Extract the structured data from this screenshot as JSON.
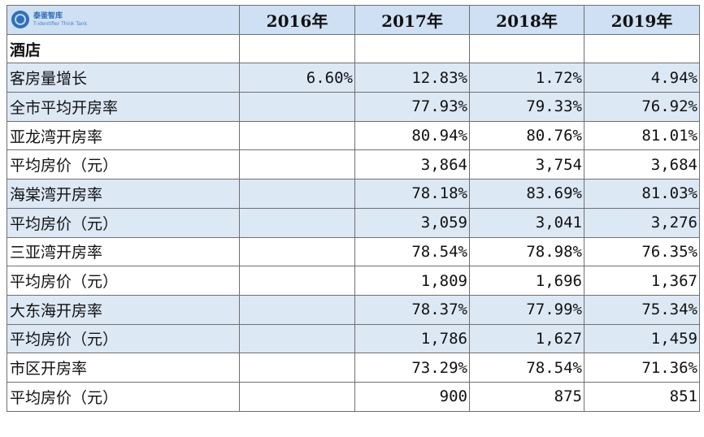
{
  "logo": {
    "cn": "泰鉴智库",
    "en": "T-identifier Think Tank"
  },
  "columns": [
    "2016年",
    "2017年",
    "2018年",
    "2019年"
  ],
  "section": "酒店",
  "rows": [
    {
      "label": "客房量增长",
      "values": [
        "6.60%",
        "12.83%",
        "1.72%",
        "4.94%"
      ],
      "shade": true
    },
    {
      "label": "全市平均开房率",
      "values": [
        "",
        "77.93%",
        "79.33%",
        "76.92%"
      ],
      "shade": true
    },
    {
      "label": "亚龙湾开房率",
      "values": [
        "",
        "80.94%",
        "80.76%",
        "81.01%"
      ],
      "shade": false
    },
    {
      "label": "平均房价（元）",
      "values": [
        "",
        "3,864",
        "3,754",
        "3,684"
      ],
      "shade": false
    },
    {
      "label": "海棠湾开房率",
      "values": [
        "",
        "78.18%",
        "83.69%",
        "81.03%"
      ],
      "shade": true
    },
    {
      "label": "平均房价（元）",
      "values": [
        "",
        "3,059",
        "3,041",
        "3,276"
      ],
      "shade": true
    },
    {
      "label": "三亚湾开房率",
      "values": [
        "",
        "78.54%",
        "78.98%",
        "76.35%"
      ],
      "shade": false
    },
    {
      "label": "平均房价（元）",
      "values": [
        "",
        "1,809",
        "1,696",
        "1,367"
      ],
      "shade": false
    },
    {
      "label": "大东海开房率",
      "values": [
        "",
        "78.37%",
        "77.99%",
        "75.34%"
      ],
      "shade": true
    },
    {
      "label": "平均房价（元）",
      "values": [
        "",
        "1,786",
        "1,627",
        "1,459"
      ],
      "shade": true
    },
    {
      "label": "市区开房率",
      "values": [
        "",
        "73.29%",
        "78.54%",
        "71.36%"
      ],
      "shade": false
    },
    {
      "label": "平均房价（元）",
      "values": [
        "",
        "900",
        "875",
        "851"
      ],
      "shade": false
    }
  ],
  "colors": {
    "header_bg": "#cfe0f4",
    "shade_bg": "#dde8f5",
    "border": "#6f6f6f",
    "logo_blue": "#2f6fb8"
  }
}
